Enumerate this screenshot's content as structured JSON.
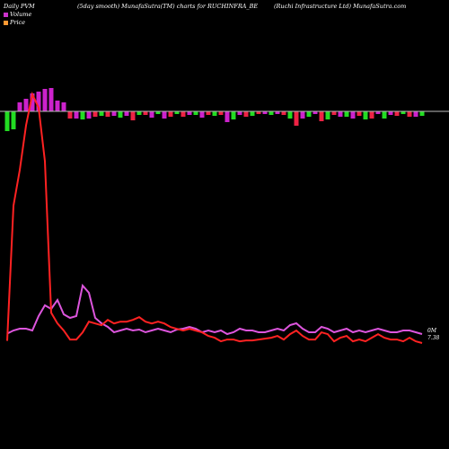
{
  "header": {
    "left": "Daily PVM",
    "center": "(5day smooth) MunafaSutra(TM) charts for RUCHINFRA_BE",
    "right": "(Ruchi  Infrastructure  Ltd) MunafaSutra.com"
  },
  "legend": [
    {
      "label": "Volume",
      "color": "#cc33cc"
    },
    {
      "label": "Price",
      "color": "#ff9933"
    }
  ],
  "end_labels": {
    "volume": "0M",
    "price": "7.38"
  },
  "chart_data": {
    "type": "bar+line",
    "colors": {
      "volume_line": "#dd55dd",
      "price_line": "#ff2222",
      "up_bar": "#22dd22",
      "down_bar": "#ee2244",
      "high_bar": "#cc22cc",
      "baseline": "#bbbbbb"
    },
    "bars": [
      -22,
      -20,
      10,
      14,
      20,
      22,
      25,
      26,
      12,
      10,
      -8,
      -8,
      -9,
      -8,
      -6,
      -5,
      -6,
      -5,
      -7,
      -5,
      -10,
      -4,
      -4,
      -7,
      -3,
      -8,
      -6,
      -3,
      -6,
      -4,
      -4,
      -7,
      -4,
      -5,
      -4,
      -12,
      -9,
      -4,
      -6,
      -5,
      -3,
      -3,
      -4,
      -3,
      -4,
      -8,
      -16,
      -8,
      -6,
      -3,
      -11,
      -9,
      -4,
      -6,
      -6,
      -8,
      -5,
      -9,
      -8,
      -3,
      -8,
      -4,
      -5,
      -3,
      -6,
      -6,
      -5
    ],
    "price": [
      8.5,
      160,
      200,
      250,
      285,
      270,
      210,
      40,
      28,
      20,
      10,
      10,
      18,
      30,
      28,
      26,
      32,
      28,
      30,
      30,
      32,
      35,
      30,
      28,
      30,
      28,
      24,
      22,
      20,
      22,
      20,
      18,
      14,
      12,
      8,
      10,
      10,
      8,
      9,
      9,
      10,
      11,
      12,
      14,
      10,
      16,
      20,
      14,
      10,
      10,
      18,
      16,
      8,
      12,
      14,
      8,
      10,
      8,
      12,
      16,
      12,
      10,
      10,
      8,
      12,
      8,
      6
    ],
    "volume": [
      8.5,
      12,
      14,
      14,
      12,
      28,
      40,
      36,
      46,
      30,
      26,
      28,
      62,
      54,
      26,
      20,
      16,
      10,
      12,
      14,
      12,
      13,
      10,
      12,
      14,
      12,
      10,
      13,
      14,
      16,
      14,
      10,
      12,
      10,
      12,
      8,
      10,
      14,
      12,
      12,
      10,
      10,
      12,
      14,
      12,
      18,
      20,
      14,
      10,
      10,
      16,
      14,
      10,
      12,
      14,
      10,
      12,
      10,
      12,
      14,
      12,
      10,
      10,
      12,
      12,
      10,
      8
    ]
  }
}
